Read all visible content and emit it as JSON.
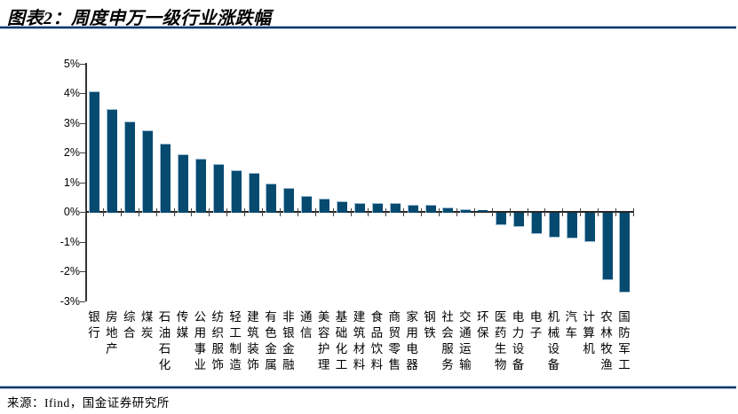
{
  "header": {
    "title": "图表2：周度申万一级行业涨跌幅"
  },
  "footer": {
    "source": "来源：Ifind，国金证券研究所"
  },
  "colors": {
    "bar_fill": "#074A70",
    "bar_edge": "#9DBDD2",
    "axis": "#333333",
    "rule_core": "#17375E",
    "rule_edge": "#A9C6E8",
    "text": "#000000"
  },
  "chart_data": {
    "type": "bar",
    "title": "周度申万一级行业涨跌幅",
    "xlabel": "",
    "ylabel": "",
    "unit": "%",
    "ylim": [
      -3,
      5
    ],
    "grid": false,
    "legend": false,
    "bar_orientation": "vertical",
    "categories": [
      "银行",
      "房地产",
      "综合",
      "煤炭",
      "石油石化",
      "传媒",
      "公用事业",
      "纺织服饰",
      "轻工制造",
      "建筑装饰",
      "有色金属",
      "非银金融",
      "通信",
      "美容护理",
      "基础化工",
      "建筑材料",
      "食品饮料",
      "商贸零售",
      "家用电器",
      "钢铁",
      "社会服务",
      "交通运输",
      "环保",
      "医药生物",
      "电力设备",
      "电子",
      "机械设备",
      "汽车",
      "计算机",
      "农林牧渔",
      "国防军工"
    ],
    "values": [
      4.05,
      3.45,
      3.05,
      2.75,
      2.3,
      1.95,
      1.8,
      1.6,
      1.4,
      1.3,
      0.95,
      0.8,
      0.55,
      0.45,
      0.35,
      0.3,
      0.3,
      0.3,
      0.25,
      0.25,
      0.15,
      0.1,
      0.05,
      -0.4,
      -0.45,
      -0.7,
      -0.8,
      -0.85,
      -0.95,
      -2.25,
      -2.65
    ],
    "y_axis": {
      "ticks": [
        {
          "value": 5,
          "label": "5%"
        },
        {
          "value": 4,
          "label": "4%"
        },
        {
          "value": 3,
          "label": "3%"
        },
        {
          "value": 2,
          "label": "2%"
        },
        {
          "value": 1,
          "label": "1%"
        },
        {
          "value": 0,
          "label": "0%"
        },
        {
          "value": -1,
          "label": "-1%"
        },
        {
          "value": -2,
          "label": "-2%"
        },
        {
          "value": -3,
          "label": "-3%"
        }
      ]
    }
  }
}
